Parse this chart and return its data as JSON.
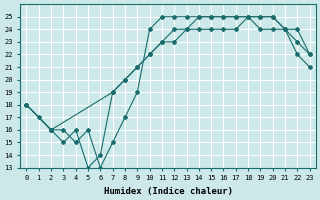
{
  "xlabel": "Humidex (Indice chaleur)",
  "bg_color": "#cce8e8",
  "grid_color": "#ffffff",
  "line_color": "#1a6b6b",
  "xlim": [
    -0.5,
    23.5
  ],
  "ylim": [
    13,
    26
  ],
  "xticks": [
    0,
    1,
    2,
    3,
    4,
    5,
    6,
    7,
    8,
    9,
    10,
    11,
    12,
    13,
    14,
    15,
    16,
    17,
    18,
    19,
    20,
    21,
    22,
    23
  ],
  "yticks": [
    13,
    14,
    15,
    16,
    17,
    18,
    19,
    20,
    21,
    22,
    23,
    24,
    25
  ],
  "line1_x": [
    0,
    1,
    2,
    3,
    4,
    5,
    6,
    7,
    8,
    9,
    10,
    11,
    12,
    13,
    14,
    15,
    16,
    17,
    18,
    19,
    20,
    21,
    22,
    23
  ],
  "line1_y": [
    18,
    17,
    16,
    16,
    15,
    16,
    13,
    15,
    17,
    19,
    24,
    25,
    25,
    25,
    25,
    25,
    25,
    25,
    25,
    25,
    25,
    24,
    22,
    21
  ],
  "line2_x": [
    0,
    2,
    7,
    8,
    9,
    10,
    11,
    12,
    13,
    14,
    15,
    16,
    17,
    18,
    19,
    20,
    21,
    22,
    23
  ],
  "line2_y": [
    18,
    16,
    19,
    20,
    21,
    22,
    23,
    23,
    24,
    24,
    24,
    24,
    24,
    25,
    24,
    24,
    24,
    23,
    22
  ],
  "line3_x": [
    0,
    2,
    3,
    4,
    5,
    6,
    7,
    8,
    9,
    10,
    11,
    12,
    13,
    14,
    15,
    16,
    17,
    18,
    19,
    20,
    21,
    22,
    23
  ],
  "line3_y": [
    18,
    16,
    15,
    16,
    13,
    14,
    19,
    20,
    21,
    22,
    23,
    24,
    24,
    25,
    25,
    25,
    25,
    25,
    25,
    25,
    24,
    24,
    22
  ]
}
